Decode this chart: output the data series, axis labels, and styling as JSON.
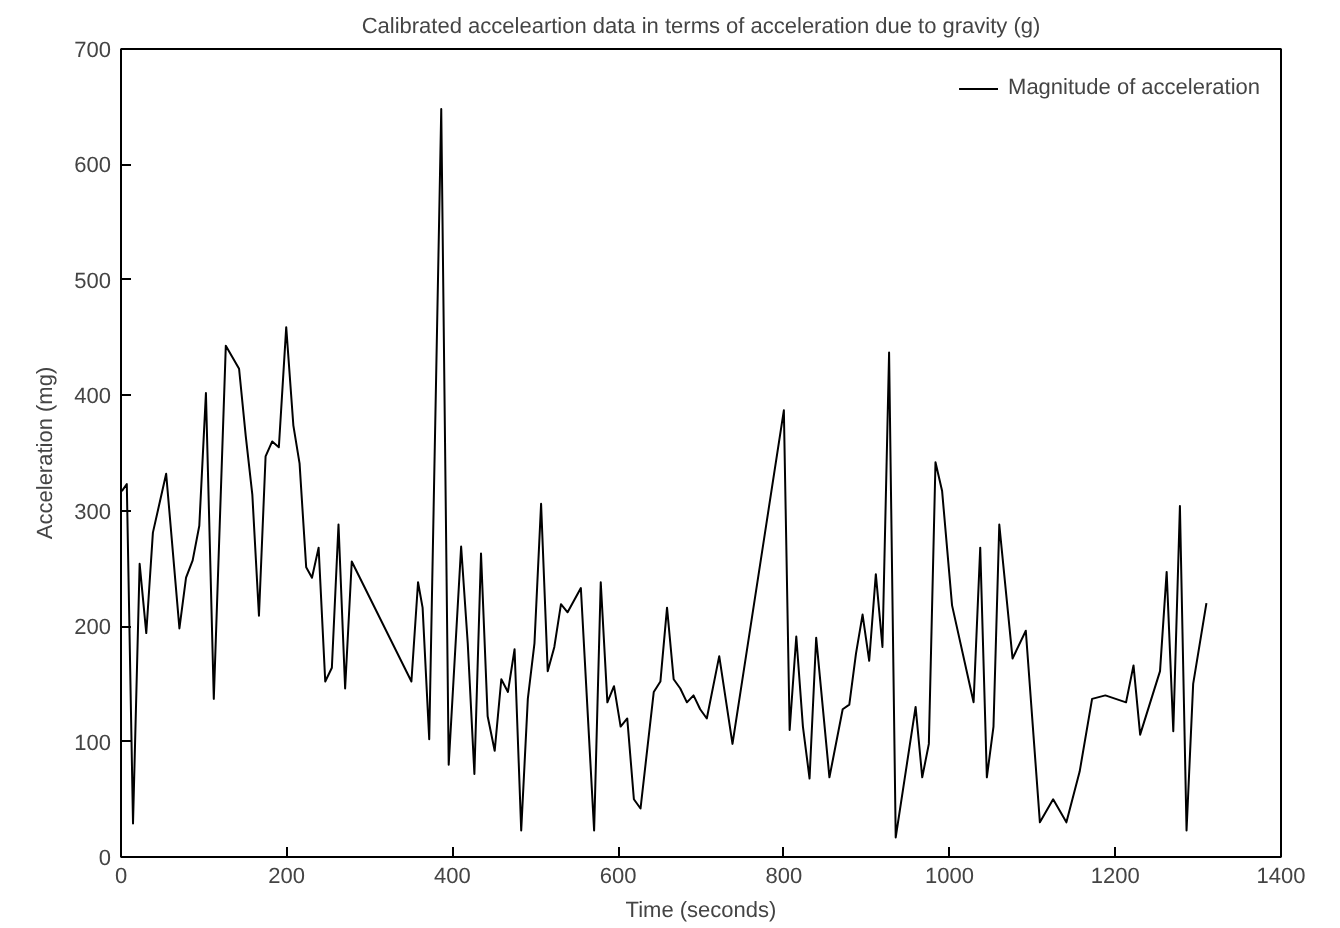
{
  "chart_data": {
    "type": "line",
    "title": "Calibrated acceleartion data in terms of acceleration due to gravity (g)",
    "xlabel": "Time (seconds)",
    "ylabel": "Acceleration (mg)",
    "xlim": [
      0,
      1400
    ],
    "xticks": [
      0,
      200,
      400,
      600,
      800,
      1000,
      1200,
      1400
    ],
    "ylim": [
      0,
      700
    ],
    "yticks": [
      0,
      100,
      200,
      300,
      400,
      500,
      600,
      700
    ],
    "grid": false,
    "legend": "top right",
    "marker": "none",
    "line_style": "solid",
    "series": [
      {
        "name": "Magnitude of acceleration",
        "color": "#000000",
        "x": [
          1,
          7,
          14.5,
          22.5,
          30.5,
          38.5,
          54.5,
          70.5,
          78.5,
          86.5,
          94.5,
          102.5,
          112,
          126.5,
          142.5,
          150.5,
          158.5,
          166.5,
          174.5,
          182.5,
          190.5,
          199.4,
          208,
          215.5,
          223.5,
          230.5,
          238.5,
          246.5,
          254.5,
          262.5,
          270.5,
          278.5,
          350.5,
          358.5,
          364,
          372,
          386.5,
          395.5,
          410.5,
          418.5,
          426.5,
          434.5,
          442.5,
          451,
          459,
          467,
          475,
          483,
          491,
          499,
          507,
          515,
          523,
          531,
          539,
          555,
          571,
          579,
          587,
          595,
          603,
          611,
          619,
          627,
          643,
          651,
          659,
          667,
          675,
          683,
          691,
          699,
          707,
          722,
          738,
          800,
          807,
          815,
          823,
          831,
          839,
          855,
          871,
          879,
          887,
          895,
          903,
          911,
          919,
          927,
          935,
          959,
          967,
          975,
          983,
          991,
          1003,
          1029,
          1037,
          1045,
          1053,
          1060,
          1076,
          1092,
          1109,
          1125,
          1141,
          1157,
          1172,
          1188,
          1213,
          1222,
          1230,
          1254,
          1262,
          1270,
          1278,
          1286,
          1294,
          1310
        ],
        "values": [
          317,
          323,
          29,
          254,
          194,
          281,
          332,
          198,
          242,
          257,
          287,
          402,
          137,
          443,
          423,
          365,
          314,
          209,
          347,
          360,
          355,
          459,
          374,
          341,
          251,
          242,
          268,
          152,
          164,
          288,
          146,
          256,
          152,
          238,
          216,
          102,
          648,
          80,
          269,
          185,
          72,
          263,
          122,
          92,
          154,
          143,
          180,
          23,
          137,
          185,
          306,
          161,
          182,
          219,
          212,
          233,
          23,
          238,
          134,
          148,
          113,
          120,
          50,
          42,
          143,
          152,
          216,
          154,
          146,
          134,
          140,
          128,
          120,
          174,
          98,
          387,
          110,
          191,
          113,
          68,
          190,
          69,
          128,
          132,
          176,
          210,
          170,
          245,
          182,
          437,
          17,
          130,
          69,
          98,
          342,
          317,
          218,
          134,
          268,
          69,
          113,
          288,
          172,
          196,
          30,
          50,
          30,
          74,
          137,
          140,
          134,
          166,
          106,
          161,
          247,
          109,
          304,
          23,
          150,
          220
        ]
      }
    ]
  }
}
